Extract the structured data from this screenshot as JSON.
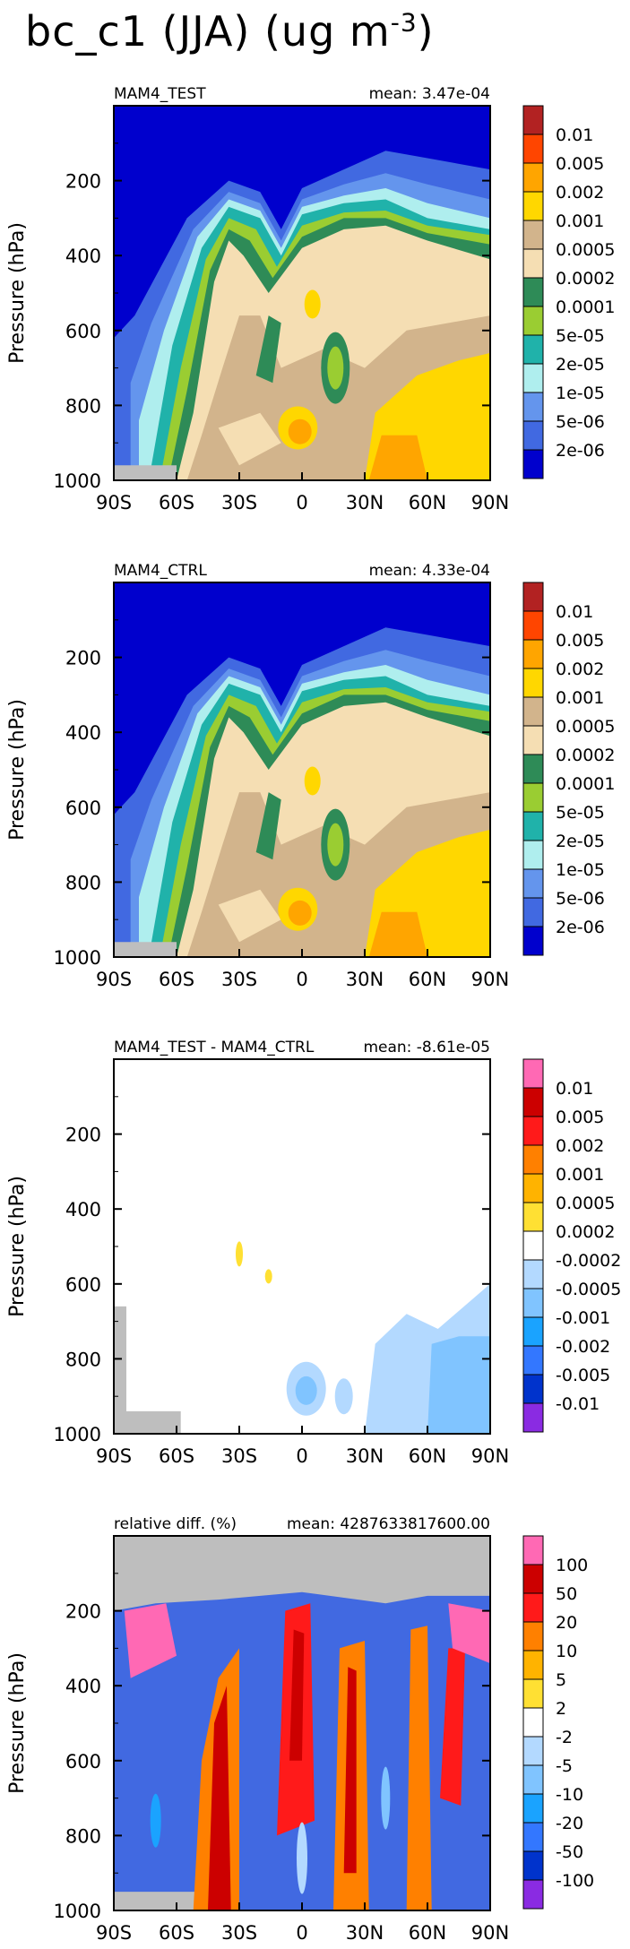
{
  "title": {
    "text": "bc_c1 (JJA) (ug m",
    "exponent": "-3",
    "close": ")"
  },
  "chart_data": [
    {
      "type": "heatmap",
      "name": "MAM4_TEST",
      "stat_label": "mean: 3.47e-04",
      "ylabel": "Pressure (hPa)",
      "ylim": [
        1000,
        0
      ],
      "yticks": [
        "200",
        "400",
        "600",
        "800",
        "1000"
      ],
      "xticks": [
        "90S",
        "60S",
        "30S",
        "0",
        "30N",
        "60N",
        "90N"
      ],
      "xlim": [
        -90,
        90
      ],
      "colorbar_labels": [
        "0.01",
        "0.005",
        "0.002",
        "0.001",
        "0.0005",
        "0.0002",
        "0.0001",
        "5e-05",
        "2e-05",
        "1e-05",
        "5e-06",
        "2e-06"
      ],
      "colorbar_colors": [
        "#b22222",
        "#ff4500",
        "#ffa500",
        "#ffd700",
        "#d2b48c",
        "#f5deb3",
        "#2e8b57",
        "#9acd32",
        "#20b2aa",
        "#afeeee",
        "#6495ed",
        "#4169e1",
        "#0000cd"
      ],
      "background_color": "#0000cd"
    },
    {
      "type": "heatmap",
      "name": "MAM4_CTRL",
      "stat_label": "mean: 4.33e-04",
      "ylabel": "Pressure (hPa)",
      "ylim": [
        1000,
        0
      ],
      "yticks": [
        "200",
        "400",
        "600",
        "800",
        "1000"
      ],
      "xticks": [
        "90S",
        "60S",
        "30S",
        "0",
        "30N",
        "60N",
        "90N"
      ],
      "xlim": [
        -90,
        90
      ],
      "colorbar_labels": [
        "0.01",
        "0.005",
        "0.002",
        "0.001",
        "0.0005",
        "0.0002",
        "0.0001",
        "5e-05",
        "2e-05",
        "1e-05",
        "5e-06",
        "2e-06"
      ],
      "colorbar_colors": [
        "#b22222",
        "#ff4500",
        "#ffa500",
        "#ffd700",
        "#d2b48c",
        "#f5deb3",
        "#2e8b57",
        "#9acd32",
        "#20b2aa",
        "#afeeee",
        "#6495ed",
        "#4169e1",
        "#0000cd"
      ],
      "background_color": "#0000cd"
    },
    {
      "type": "heatmap",
      "name": "MAM4_TEST - MAM4_CTRL",
      "stat_label": "mean: -8.61e-05",
      "ylabel": "Pressure (hPa)",
      "ylim": [
        1000,
        0
      ],
      "yticks": [
        "200",
        "400",
        "600",
        "800",
        "1000"
      ],
      "xticks": [
        "90S",
        "60S",
        "30S",
        "0",
        "30N",
        "60N",
        "90N"
      ],
      "xlim": [
        -90,
        90
      ],
      "colorbar_labels": [
        "0.01",
        "0.005",
        "0.002",
        "0.001",
        "0.0005",
        "0.0002",
        "-0.0002",
        "-0.0005",
        "-0.001",
        "-0.002",
        "-0.005",
        "-0.01"
      ],
      "colorbar_colors": [
        "#ff69b4",
        "#cc0000",
        "#ff1a1a",
        "#ff8000",
        "#ffb300",
        "#ffe033",
        "#ffffff",
        "#b3d9ff",
        "#80c4ff",
        "#1aa3ff",
        "#3377ff",
        "#0033cc",
        "#8a2be2"
      ],
      "background_color": "#ffffff"
    },
    {
      "type": "heatmap",
      "name": "relative diff. (%)",
      "stat_label": "mean: 4287633817600.00",
      "ylabel": "Pressure (hPa)",
      "ylim": [
        1000,
        0
      ],
      "yticks": [
        "200",
        "400",
        "600",
        "800",
        "1000"
      ],
      "xticks": [
        "90S",
        "60S",
        "30S",
        "0",
        "30N",
        "60N",
        "90N"
      ],
      "xlim": [
        -90,
        90
      ],
      "colorbar_labels": [
        "100",
        "50",
        "20",
        "10",
        "5",
        "2",
        "-2",
        "-5",
        "-10",
        "-20",
        "-50",
        "-100"
      ],
      "colorbar_colors": [
        "#ff69b4",
        "#cc0000",
        "#ff1a1a",
        "#ff8000",
        "#ffb300",
        "#ffe033",
        "#ffffff",
        "#b3d9ff",
        "#80c4ff",
        "#1aa3ff",
        "#3377ff",
        "#0033cc",
        "#8a2be2"
      ],
      "background_color": "#4169e1"
    }
  ]
}
